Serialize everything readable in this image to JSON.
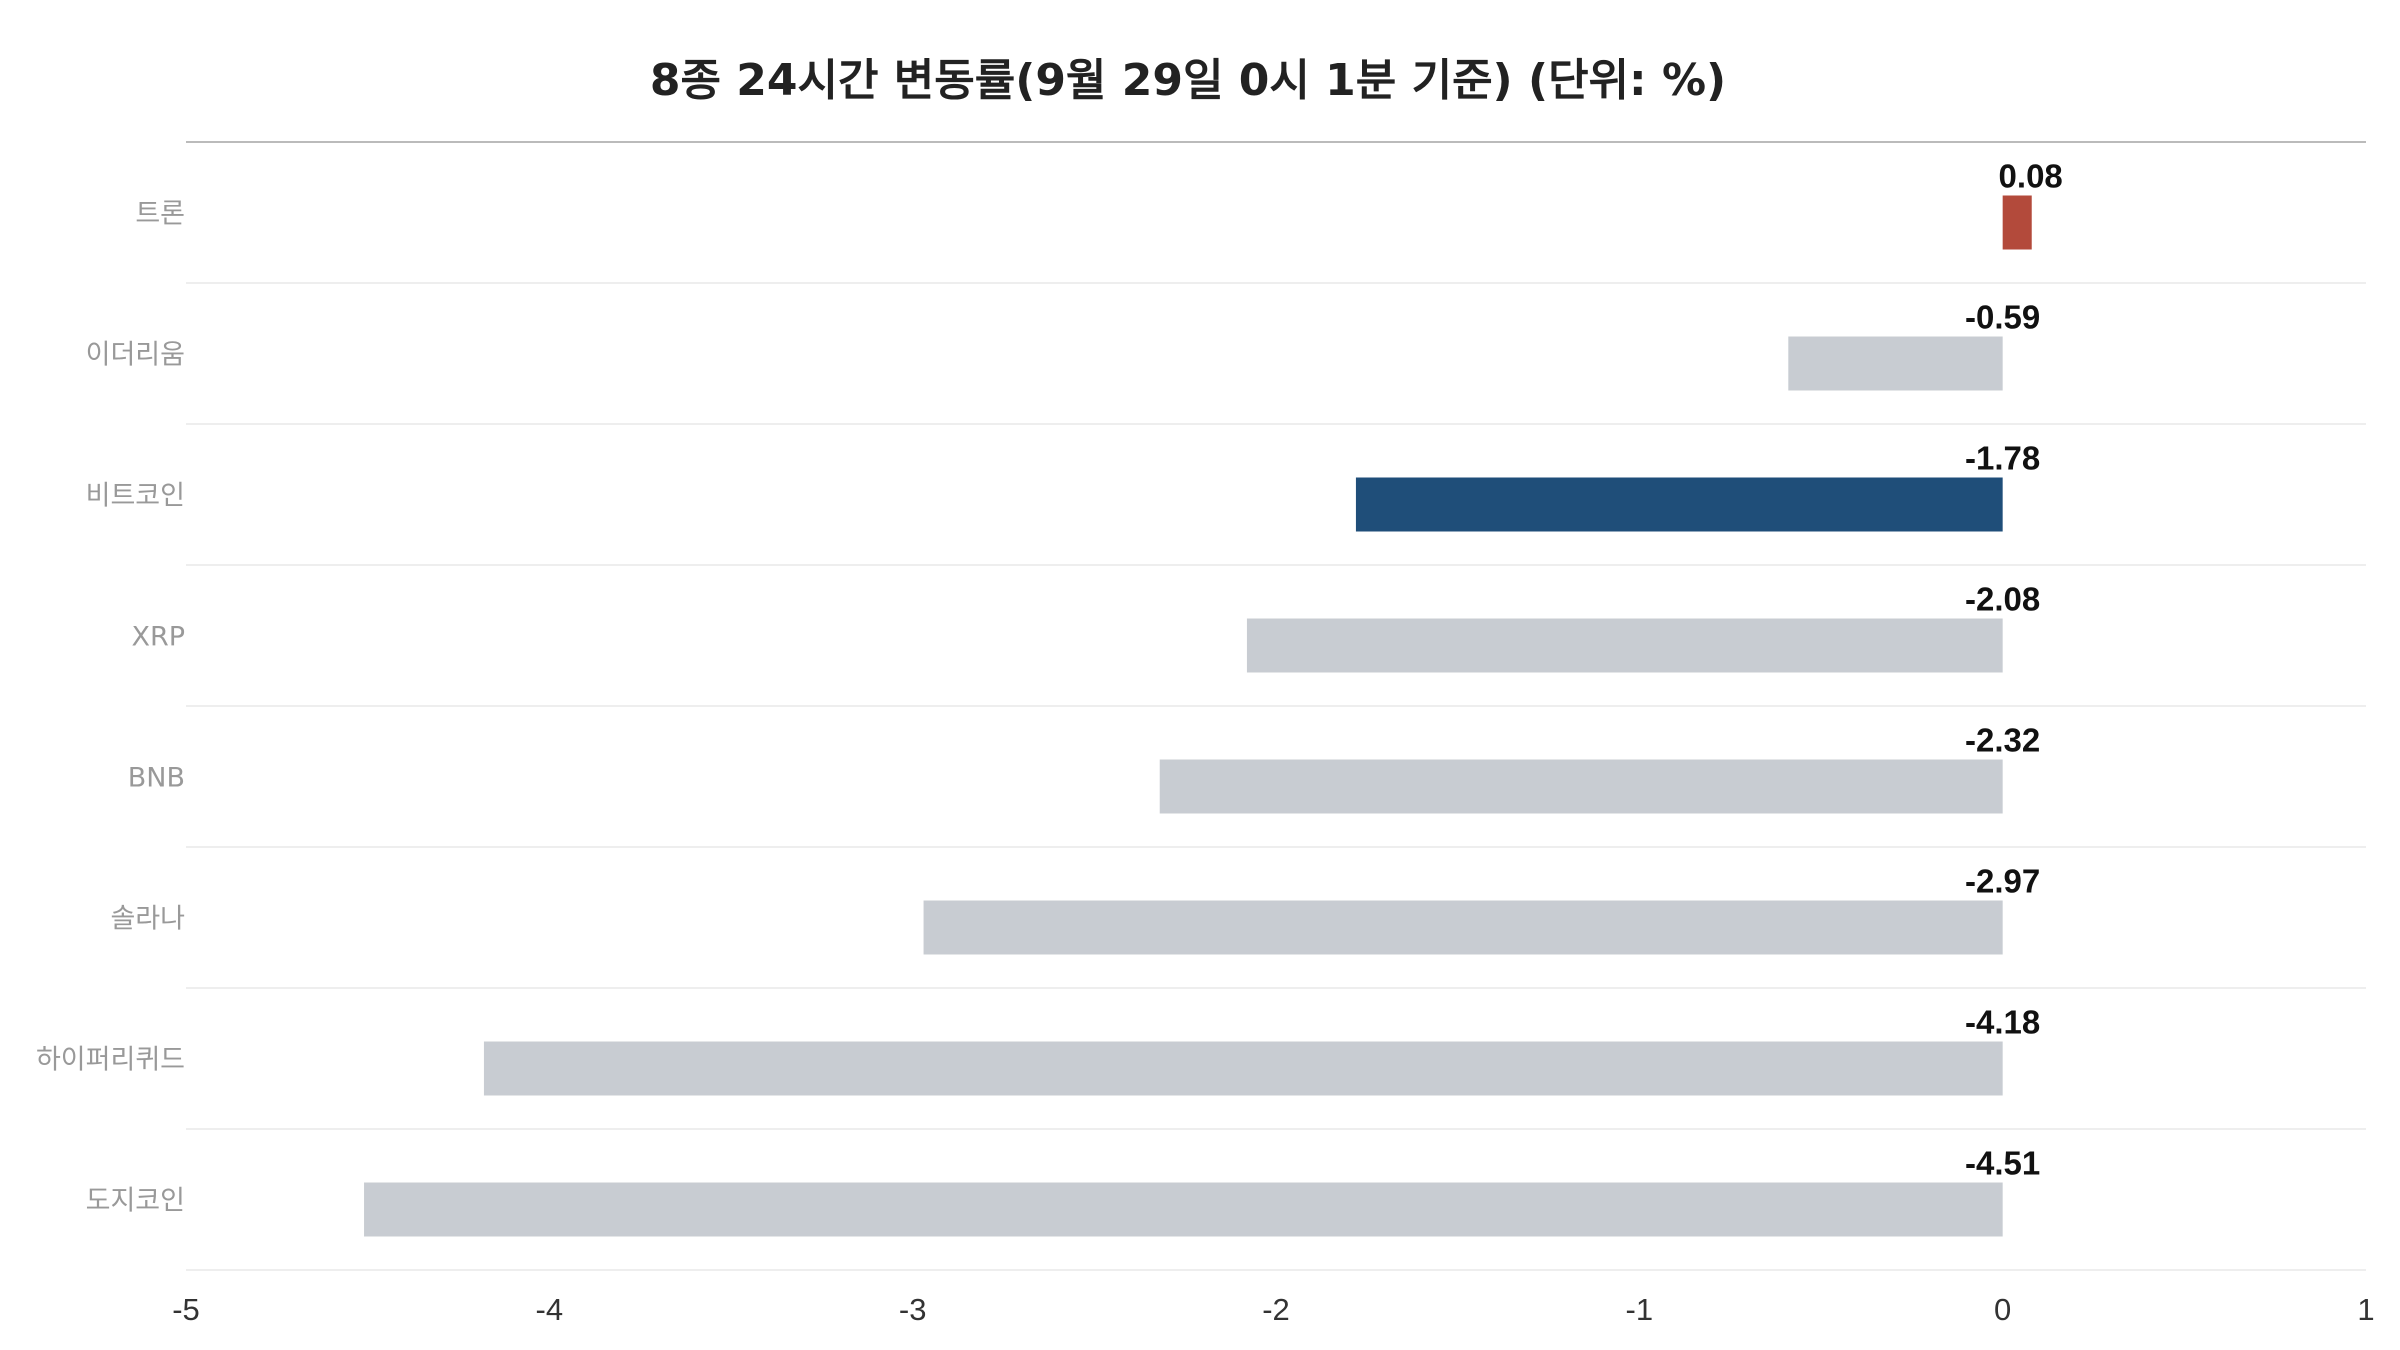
{
  "chart_data": {
    "type": "bar",
    "orientation": "horizontal",
    "title": "8종 24시간 변동률(9월 29일 0시 1분 기준) (단위: %)",
    "xlabel": "",
    "ylabel": "",
    "categories": [
      "트론",
      "이더리움",
      "비트코인",
      "XRP",
      "BNB",
      "솔라나",
      "하이퍼리퀴드",
      "도지코인"
    ],
    "values": [
      0.08,
      -0.59,
      -1.78,
      -2.08,
      -2.32,
      -2.97,
      -4.18,
      -4.51
    ],
    "value_labels": [
      "0.08",
      "-0.59",
      "-1.78",
      "-2.08",
      "-2.32",
      "-2.97",
      "-4.18",
      "-4.51"
    ],
    "bar_colors": [
      "#b34a3b",
      "#c8ccd2",
      "#1f4e79",
      "#c8ccd2",
      "#c8ccd2",
      "#c8ccd2",
      "#c8ccd2",
      "#c8ccd2"
    ],
    "xlim": [
      -5,
      1
    ],
    "x_ticks": [
      -5,
      -4,
      -3,
      -2,
      -1,
      0,
      1
    ],
    "x_tick_labels": [
      "-5",
      "-4",
      "-3",
      "-2",
      "-1",
      "0",
      "1"
    ],
    "grid": "horizontal separators",
    "legend": "none"
  }
}
